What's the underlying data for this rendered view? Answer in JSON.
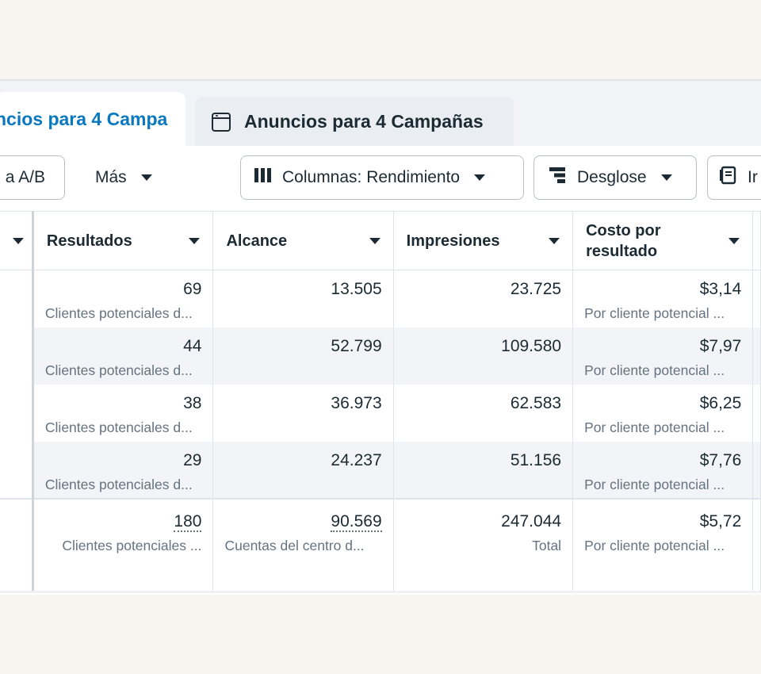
{
  "tabs": {
    "active_label": "ncios para 4 Campa",
    "inactive_label": "Anuncios para 4 Campañas"
  },
  "toolbar": {
    "ab_label": "a A/B",
    "more_label": "Más",
    "columns_label": "Columnas: Rendimiento",
    "breakdown_label": "Desglose",
    "reports_label": "Ir"
  },
  "columns": {
    "results": "Resultados",
    "reach": "Alcance",
    "impressions": "Impresiones",
    "cost_line1": "Costo por",
    "cost_line2": "resultado"
  },
  "rows": [
    {
      "results": "69",
      "results_sub": "Clientes potenciales d...",
      "reach": "13.505",
      "impressions": "23.725",
      "cost": "$3,14",
      "cost_sub": "Por cliente potencial ..."
    },
    {
      "results": "44",
      "results_sub": "Clientes potenciales d...",
      "reach": "52.799",
      "impressions": "109.580",
      "cost": "$7,97",
      "cost_sub": "Por cliente potencial ..."
    },
    {
      "results": "38",
      "results_sub": "Clientes potenciales d...",
      "reach": "36.973",
      "impressions": "62.583",
      "cost": "$6,25",
      "cost_sub": "Por cliente potencial ..."
    },
    {
      "results": "29",
      "results_sub": "Clientes potenciales d...",
      "reach": "24.237",
      "impressions": "51.156",
      "cost": "$7,76",
      "cost_sub": "Por cliente potencial ..."
    }
  ],
  "total": {
    "results": "180",
    "results_sub": "Clientes potenciales ...",
    "reach": "90.569",
    "reach_sub": "Cuentas del centro d...",
    "impressions": "247.044",
    "impressions_sub": "Total",
    "cost": "$5,72",
    "cost_sub": "Por cliente potencial ..."
  },
  "colors": {
    "accent": "#0a78be",
    "text": "#1c2b33",
    "muted": "#667380",
    "row_alt": "#f2f4f7"
  },
  "icons": {
    "tab": "ad-window-icon",
    "columns": "columns-icon",
    "breakdown": "breakdown-icon",
    "reports": "reports-icon"
  }
}
